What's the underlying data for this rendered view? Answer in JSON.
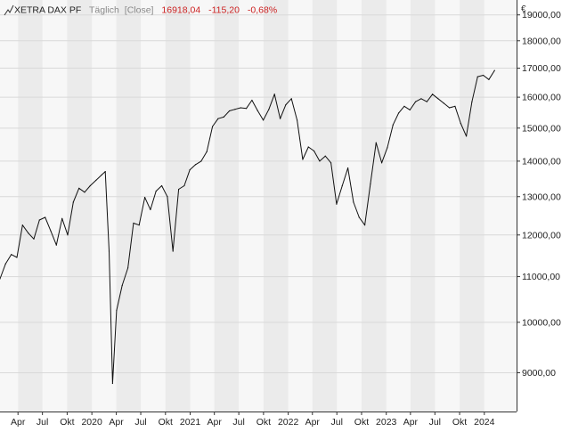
{
  "header": {
    "instrument": "XETRA DAX PF",
    "interval": "Täglich",
    "price_type": "[Close]",
    "last": "16918,04",
    "change": "-115,20",
    "change_pct": "-0,68%"
  },
  "colors": {
    "line": "#111111",
    "negative": "#cc2222",
    "muted": "#888888",
    "grid": "#d9d9d9",
    "band_shade": "#ebebeb",
    "plot_bg": "#f7f7f7",
    "axis": "#333333"
  },
  "chart_data": {
    "type": "line",
    "title": "XETRA DAX PF",
    "xlabel": "",
    "ylabel": "€",
    "scale": "log",
    "grid": true,
    "legend": "none",
    "ylim": [
      8300,
      19600
    ],
    "xlim": [
      "2019-01-24",
      "2024-04-30"
    ],
    "y_ticks": [
      {
        "value": 9000,
        "label": "9000,00"
      },
      {
        "value": 10000,
        "label": "10000,00"
      },
      {
        "value": 11000,
        "label": "11000,00"
      },
      {
        "value": 12000,
        "label": "12000,00"
      },
      {
        "value": 13000,
        "label": "13000,00"
      },
      {
        "value": 14000,
        "label": "14000,00"
      },
      {
        "value": 15000,
        "label": "15000,00"
      },
      {
        "value": 16000,
        "label": "16000,00"
      },
      {
        "value": 17000,
        "label": "17000,00"
      },
      {
        "value": 18000,
        "label": "18000,00"
      },
      {
        "value": 19000,
        "label": "19000,00"
      }
    ],
    "x_ticks": [
      {
        "date": "2019-04-01",
        "label": "Apr"
      },
      {
        "date": "2019-07-01",
        "label": "Jul"
      },
      {
        "date": "2019-10-01",
        "label": "Okt"
      },
      {
        "date": "2020-01-01",
        "label": "2020"
      },
      {
        "date": "2020-04-01",
        "label": "Apr"
      },
      {
        "date": "2020-07-01",
        "label": "Jul"
      },
      {
        "date": "2020-10-01",
        "label": "Okt"
      },
      {
        "date": "2021-01-01",
        "label": "2021"
      },
      {
        "date": "2021-04-01",
        "label": "Apr"
      },
      {
        "date": "2021-07-01",
        "label": "Jul"
      },
      {
        "date": "2021-10-01",
        "label": "Okt"
      },
      {
        "date": "2022-01-01",
        "label": "2022"
      },
      {
        "date": "2022-04-01",
        "label": "Apr"
      },
      {
        "date": "2022-07-01",
        "label": "Jul"
      },
      {
        "date": "2022-10-01",
        "label": "Okt"
      },
      {
        "date": "2023-01-01",
        "label": "2023"
      },
      {
        "date": "2023-04-01",
        "label": "Apr"
      },
      {
        "date": "2023-07-01",
        "label": "Jul"
      },
      {
        "date": "2023-10-01",
        "label": "Okt"
      },
      {
        "date": "2024-01-01",
        "label": "2024"
      }
    ],
    "series": [
      {
        "x": [
          "2019-01-24",
          "2019-02-14",
          "2019-03-07",
          "2019-03-28",
          "2019-04-18",
          "2019-05-09",
          "2019-05-30",
          "2019-06-20",
          "2019-07-11",
          "2019-08-01",
          "2019-08-22",
          "2019-09-12",
          "2019-10-03",
          "2019-10-24",
          "2019-11-14",
          "2019-12-05",
          "2019-12-26",
          "2020-01-16",
          "2020-02-06",
          "2020-02-20",
          "2020-03-05",
          "2020-03-18",
          "2020-04-02",
          "2020-04-23",
          "2020-05-14",
          "2020-06-04",
          "2020-06-25",
          "2020-07-16",
          "2020-08-06",
          "2020-08-27",
          "2020-09-17",
          "2020-10-08",
          "2020-10-29",
          "2020-11-19",
          "2020-12-10",
          "2020-12-31",
          "2021-01-21",
          "2021-02-11",
          "2021-03-04",
          "2021-03-25",
          "2021-04-15",
          "2021-05-06",
          "2021-05-27",
          "2021-06-17",
          "2021-07-08",
          "2021-07-29",
          "2021-08-19",
          "2021-09-09",
          "2021-09-30",
          "2021-10-21",
          "2021-11-11",
          "2021-12-02",
          "2021-12-23",
          "2022-01-13",
          "2022-02-03",
          "2022-02-24",
          "2022-03-17",
          "2022-04-07",
          "2022-04-28",
          "2022-05-19",
          "2022-06-09",
          "2022-06-30",
          "2022-07-21",
          "2022-08-11",
          "2022-09-01",
          "2022-09-22",
          "2022-10-13",
          "2022-11-03",
          "2022-11-24",
          "2022-12-15",
          "2023-01-05",
          "2023-01-26",
          "2023-02-16",
          "2023-03-09",
          "2023-03-30",
          "2023-04-20",
          "2023-05-11",
          "2023-06-01",
          "2023-06-22",
          "2023-07-13",
          "2023-08-03",
          "2023-08-24",
          "2023-09-14",
          "2023-10-05",
          "2023-10-26",
          "2023-11-16",
          "2023-12-07",
          "2023-12-28",
          "2024-01-18",
          "2024-02-08"
        ],
        "y": [
          10950,
          11300,
          11520,
          11450,
          12250,
          12050,
          11900,
          12380,
          12450,
          12100,
          11750,
          12420,
          12000,
          12850,
          13230,
          13120,
          13300,
          13450,
          13600,
          13700,
          11600,
          8800,
          10250,
          10800,
          11200,
          12300,
          12250,
          12980,
          12650,
          13150,
          13300,
          13000,
          11600,
          13200,
          13300,
          13750,
          13900,
          14000,
          14280,
          15050,
          15300,
          15350,
          15550,
          15600,
          15650,
          15630,
          15900,
          15560,
          15250,
          15600,
          16100,
          15300,
          15750,
          15950,
          15250,
          14050,
          14420,
          14300,
          14000,
          14150,
          13950,
          12800,
          13300,
          13800,
          12850,
          12450,
          12250,
          13350,
          14550,
          13950,
          14400,
          15100,
          15480,
          15700,
          15580,
          15850,
          15950,
          15850,
          16100,
          15950,
          15800,
          15650,
          15700,
          15150,
          14750,
          15850,
          16700,
          16750,
          16600,
          16918
        ]
      }
    ]
  }
}
